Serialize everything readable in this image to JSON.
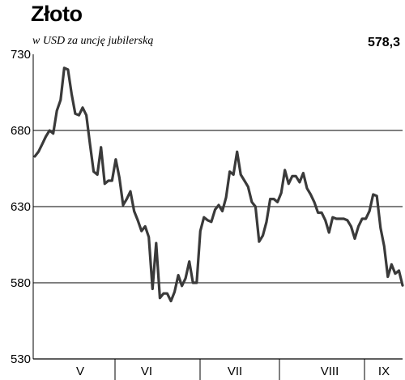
{
  "title": "Złoto",
  "subtitle": "w USD za uncję jubilerską",
  "last_value_label": "578,3",
  "chart_data": {
    "type": "line",
    "title": "Złoto",
    "subtitle": "w USD za uncję jubilerską",
    "ylabel": "",
    "xlabel": "",
    "ylim": [
      530,
      730
    ],
    "yticks": [
      "730",
      "680",
      "630",
      "580",
      "530"
    ],
    "months": [
      "V",
      "VI",
      "VII",
      "VIII",
      "IX"
    ],
    "grid": true,
    "series": [
      {
        "color": "#3a3a3a",
        "values": [
          663,
          666,
          671,
          676,
          680,
          678,
          693,
          700,
          721,
          720,
          704,
          691,
          690,
          695,
          690,
          671,
          653,
          651,
          669,
          645,
          647,
          647,
          661,
          649,
          631,
          635,
          640,
          627,
          621,
          614,
          617,
          610,
          576,
          606,
          570,
          573,
          573,
          568,
          574,
          585,
          578,
          583,
          594,
          580,
          580,
          614,
          623,
          621,
          620,
          628,
          631,
          627,
          636,
          653,
          651,
          666,
          651,
          647,
          643,
          633,
          630,
          607,
          611,
          620,
          635,
          635,
          633,
          639,
          654,
          645,
          650,
          650,
          646,
          652,
          642,
          638,
          633,
          626,
          626,
          621,
          613,
          623,
          622,
          622,
          622,
          621,
          617,
          609,
          617,
          622,
          622,
          627,
          638,
          637,
          616,
          604,
          584,
          592,
          586,
          588,
          578.3
        ]
      }
    ]
  }
}
